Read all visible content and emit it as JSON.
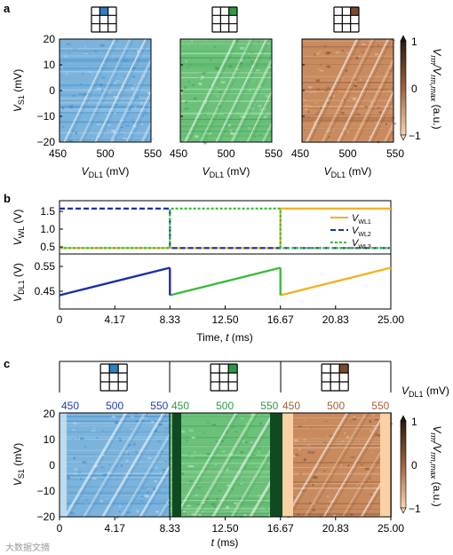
{
  "panel_labels": {
    "a": "a",
    "b": "b",
    "c": "c"
  },
  "panel_a": {
    "x_ticks": [
      "450",
      "500",
      "550"
    ],
    "y_ticks": [
      "20",
      "10",
      "0",
      "−10",
      "−20"
    ],
    "ylabel_main": "V",
    "ylabel_sub": "S1",
    "ylabel_unit": " (mV)",
    "xlabel_main": "V",
    "xlabel_sub": "DL1",
    "xlabel_unit": " (mV)",
    "colorbar": {
      "ticks": [
        "1",
        "0",
        "−1"
      ],
      "label_num": "V",
      "label_num_sub": "rm",
      "label_den": "/V",
      "label_den_sub": "rm,max",
      "label_unit": " (a.u.)"
    },
    "maps": [
      {
        "name": "blue",
        "base": "#7bb3dc",
        "dark": "#2f7fc1",
        "light": "#cfe4f4",
        "highlight_cell": 1
      },
      {
        "name": "green",
        "base": "#6cc17a",
        "dark": "#2d9a46",
        "light": "#d5f0d6",
        "highlight_cell": 2
      },
      {
        "name": "brown",
        "base": "#c98a5f",
        "dark": "#7a4b2c",
        "light": "#efc9a8",
        "highlight_cell": 2
      }
    ]
  },
  "panel_b": {
    "x_ticks": [
      "0",
      "4.17",
      "8.33",
      "12.50",
      "16.67",
      "20.83",
      "25.00"
    ],
    "xlabel": "Time, ",
    "xlabel_var": "t",
    "xlabel_unit": " (ms)",
    "top_ylabel_main": "V",
    "top_ylabel_sub": "WL",
    "top_ylabel_unit": " (V)",
    "top_y_ticks": [
      "1.5",
      "1.0",
      "0.5"
    ],
    "bottom_ylabel_main": "V",
    "bottom_ylabel_sub": "DL1",
    "bottom_ylabel_unit": " (V)",
    "bottom_y_ticks": [
      "0.55",
      "0.45"
    ],
    "legend": [
      {
        "main": "V",
        "sub": "WL1",
        "color": "#f0b323"
      },
      {
        "main": "V",
        "sub": "WL2",
        "color": "#1a2fa8"
      },
      {
        "main": "V",
        "sub": "WL3",
        "color": "#3dbb3d"
      }
    ]
  },
  "panel_c": {
    "top_ticks": [
      [
        "450",
        "500",
        "550"
      ],
      [
        "450",
        "500",
        "550"
      ],
      [
        "450",
        "500",
        "550"
      ]
    ],
    "top_tick_colors": [
      "#1f3ea8",
      "#2d9a46",
      "#a0623a"
    ],
    "top_label_main": "V",
    "top_label_sub": "DL1",
    "top_label_unit": " (mV)",
    "x_ticks": [
      "0",
      "4.17",
      "8.33",
      "12.50",
      "16.67",
      "20.83",
      "25.00"
    ],
    "xlabel_var": "t",
    "xlabel_unit": " (ms)",
    "ylabel_main": "V",
    "ylabel_sub": "S1",
    "ylabel_unit": " (mV)",
    "y_ticks": [
      "20",
      "10",
      "0",
      "−10",
      "−20"
    ],
    "colorbar_ticks": [
      "1",
      "0",
      "−1"
    ]
  },
  "watermark": "大数据文摘",
  "chart_data": [
    {
      "type": "line",
      "title": "",
      "xlabel": "Time, t (ms)",
      "ylabel": "V_WL (V)",
      "xlim": [
        0,
        25.0
      ],
      "ylim": [
        0.35,
        1.7
      ],
      "series": [
        {
          "name": "V_WL1",
          "x": [
            0,
            16.67,
            16.67,
            25.0
          ],
          "y": [
            0.5,
            0.5,
            1.5,
            1.5
          ],
          "color": "#f0b323"
        },
        {
          "name": "V_WL2",
          "x": [
            0,
            8.33,
            8.33,
            25.0
          ],
          "y": [
            1.5,
            1.5,
            0.5,
            0.5
          ],
          "color": "#1a2fa8"
        },
        {
          "name": "V_WL3",
          "x": [
            0,
            8.33,
            8.33,
            16.67,
            16.67,
            25.0
          ],
          "y": [
            0.5,
            0.5,
            1.5,
            1.5,
            0.5,
            0.5
          ],
          "color": "#3dbb3d"
        }
      ]
    },
    {
      "type": "line",
      "title": "",
      "xlabel": "Time, t (ms)",
      "ylabel": "V_DL1 (V)",
      "xlim": [
        0,
        25.0
      ],
      "ylim": [
        0.4,
        0.6
      ],
      "series": [
        {
          "name": "",
          "x": [
            0,
            8.33
          ],
          "y": [
            0.45,
            0.55
          ],
          "color": "#1a2fa8"
        },
        {
          "name": "",
          "x": [
            8.33,
            16.67
          ],
          "y": [
            0.45,
            0.55
          ],
          "color": "#3dbb3d"
        },
        {
          "name": "",
          "x": [
            16.67,
            25.0
          ],
          "y": [
            0.45,
            0.55
          ],
          "color": "#f0b323"
        }
      ]
    }
  ]
}
